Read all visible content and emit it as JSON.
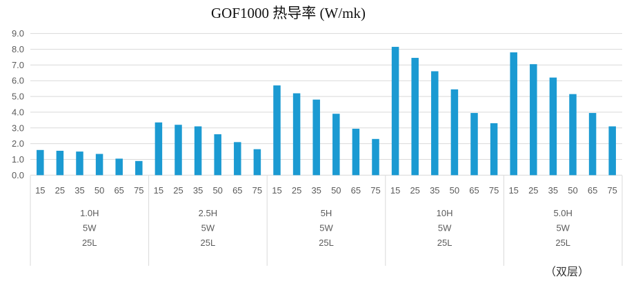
{
  "chart_data": {
    "type": "bar",
    "title": "GOF1000 热导率 (W/mk)",
    "xlabel": "",
    "ylabel": "",
    "ylim": [
      0,
      9
    ],
    "y_ticks": [
      "0.0",
      "1.0",
      "2.0",
      "3.0",
      "4.0",
      "5.0",
      "6.0",
      "7.0",
      "8.0",
      "9.0"
    ],
    "grid": true,
    "categories": [
      "15",
      "25",
      "35",
      "50",
      "65",
      "75"
    ],
    "groups": [
      {
        "lines": [
          "1.0H",
          "5W",
          "25L"
        ],
        "values": [
          1.6,
          1.55,
          1.5,
          1.35,
          1.05,
          0.9
        ]
      },
      {
        "lines": [
          "2.5H",
          "5W",
          "25L"
        ],
        "values": [
          3.35,
          3.2,
          3.1,
          2.6,
          2.1,
          1.65
        ]
      },
      {
        "lines": [
          "5H",
          "5W",
          "25L"
        ],
        "values": [
          5.7,
          5.2,
          4.8,
          3.9,
          2.95,
          2.3
        ]
      },
      {
        "lines": [
          "10H",
          "5W",
          "25L"
        ],
        "values": [
          8.15,
          7.45,
          6.6,
          5.45,
          3.95,
          3.3
        ]
      },
      {
        "lines": [
          "5.0H",
          "5W",
          "25L"
        ],
        "values": [
          7.8,
          7.05,
          6.2,
          5.15,
          3.95,
          3.1
        ]
      }
    ],
    "bar_color": "#1b9ad2",
    "grid_color": "#d9d9d9"
  },
  "footnote": "（双层）"
}
